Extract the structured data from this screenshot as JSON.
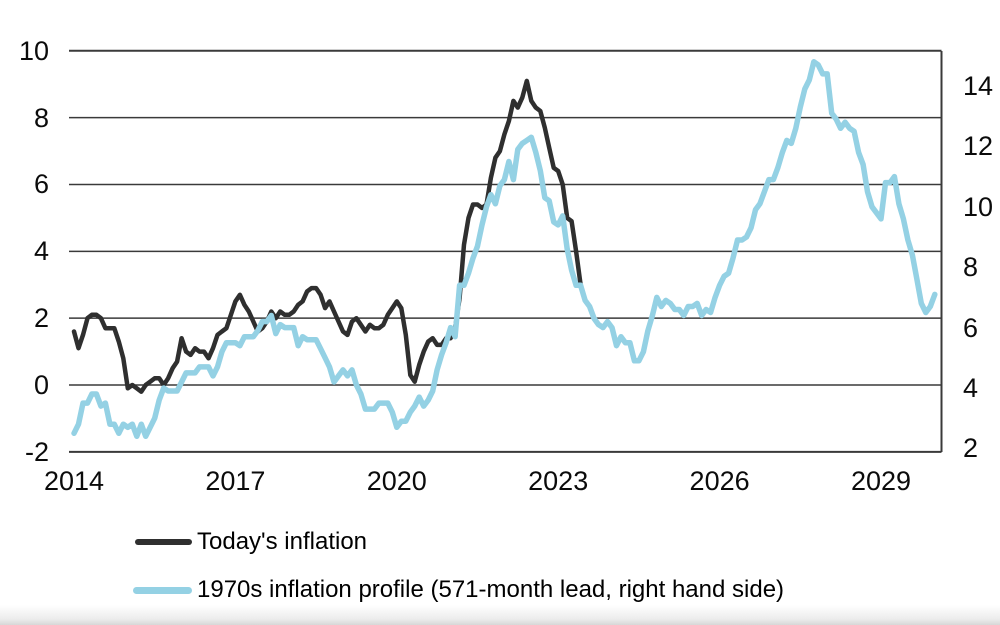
{
  "legend": {
    "items": [
      {
        "label": "Today's inflation",
        "color": "#2f2f2f"
      },
      {
        "label": "1970s inflation profile (571-month lead, right hand side)",
        "color": "#94d1e4"
      }
    ]
  },
  "chart_data": {
    "type": "line",
    "title": "",
    "x_axis": {
      "ticks": [
        "2014",
        "2017",
        "2020",
        "2023",
        "2026",
        "2029"
      ],
      "tick_years": [
        2014,
        2017,
        2020,
        2023,
        2026,
        2029
      ]
    },
    "left_axis": {
      "ticks": [
        "10",
        "8",
        "6",
        "4",
        "2",
        "0",
        "-2"
      ],
      "values": [
        10,
        8,
        6,
        4,
        2,
        0,
        -2
      ],
      "ylim": [
        -2,
        10
      ]
    },
    "right_axis": {
      "ticks": [
        "14",
        "12",
        "10",
        "8",
        "6",
        "4",
        "2"
      ],
      "values": [
        14,
        12,
        10,
        8,
        6,
        4,
        2
      ],
      "ylim": [
        2,
        14
      ],
      "note": "right axis labels are offset from the left-axis gridlines"
    },
    "gridlines": true,
    "legend_position": "bottom-left",
    "series": [
      {
        "name": "Today's inflation",
        "axis": "left",
        "color": "#2f2f2f",
        "stroke_width": 4.5,
        "frequency": "monthly",
        "start_on_axis": "2014-01",
        "end_on_axis": "2023-06",
        "values": [
          1.6,
          1.1,
          1.5,
          2.0,
          2.1,
          2.1,
          2.0,
          1.7,
          1.7,
          1.7,
          1.3,
          0.8,
          -0.1,
          0.0,
          -0.1,
          -0.2,
          0.0,
          0.1,
          0.2,
          0.2,
          0.0,
          0.2,
          0.5,
          0.7,
          1.4,
          1.0,
          0.9,
          1.1,
          1.0,
          1.0,
          0.8,
          1.1,
          1.5,
          1.6,
          1.7,
          2.1,
          2.5,
          2.7,
          2.4,
          2.2,
          1.9,
          1.6,
          1.7,
          1.9,
          2.2,
          2.0,
          2.2,
          2.1,
          2.1,
          2.2,
          2.4,
          2.5,
          2.8,
          2.9,
          2.9,
          2.7,
          2.3,
          2.5,
          2.2,
          1.9,
          1.6,
          1.5,
          1.9,
          2.0,
          1.8,
          1.6,
          1.8,
          1.7,
          1.7,
          1.8,
          2.1,
          2.3,
          2.5,
          2.3,
          1.5,
          0.3,
          0.1,
          0.6,
          1.0,
          1.3,
          1.4,
          1.2,
          1.2,
          1.4,
          1.4,
          1.7,
          2.6,
          4.2,
          5.0,
          5.4,
          5.4,
          5.3,
          5.4,
          6.2,
          6.8,
          7.0,
          7.5,
          7.9,
          8.5,
          8.3,
          8.6,
          9.1,
          8.5,
          8.3,
          8.2,
          7.7,
          7.1,
          6.5,
          6.4,
          6.0,
          5.0,
          4.9,
          4.0,
          3.0
        ]
      },
      {
        "name": "1970s inflation profile (571-month lead, right hand side)",
        "axis": "right",
        "color": "#94d1e4",
        "stroke_width": 5.5,
        "frequency": "monthly",
        "lead_months": 571,
        "start_on_axis": "2014-01",
        "end_on_axis": "2030-01",
        "values": [
          2.5,
          2.8,
          3.5,
          3.5,
          3.8,
          3.8,
          3.4,
          3.5,
          2.8,
          2.8,
          2.5,
          2.8,
          2.7,
          2.8,
          2.4,
          2.8,
          2.4,
          2.7,
          3.0,
          3.6,
          4.0,
          3.9,
          3.9,
          3.9,
          4.2,
          4.5,
          4.5,
          4.5,
          4.7,
          4.7,
          4.7,
          4.4,
          4.7,
          5.2,
          5.5,
          5.5,
          5.5,
          5.4,
          5.7,
          5.7,
          5.7,
          5.9,
          6.2,
          6.2,
          6.4,
          5.8,
          6.1,
          6.0,
          6.0,
          6.0,
          5.4,
          5.7,
          5.6,
          5.6,
          5.6,
          5.3,
          5.0,
          4.7,
          4.2,
          4.4,
          4.6,
          4.4,
          4.6,
          4.1,
          3.8,
          3.3,
          3.3,
          3.3,
          3.5,
          3.5,
          3.5,
          3.2,
          2.7,
          2.9,
          2.9,
          3.2,
          3.4,
          3.7,
          3.4,
          3.6,
          3.9,
          4.6,
          5.1,
          5.5,
          6.0,
          5.7,
          7.4,
          7.4,
          7.8,
          8.3,
          8.7,
          9.4,
          10.0,
          10.4,
          10.1,
          10.7,
          10.9,
          11.5,
          10.9,
          11.9,
          12.1,
          12.2,
          12.3,
          11.8,
          11.2,
          10.3,
          10.2,
          9.5,
          9.4,
          9.7,
          8.6,
          7.9,
          7.4,
          7.4,
          6.9,
          6.7,
          6.3,
          6.1,
          6.0,
          6.2,
          6.0,
          5.4,
          5.7,
          5.5,
          5.5,
          4.9,
          4.9,
          5.2,
          5.9,
          6.4,
          7.0,
          6.7,
          6.9,
          6.8,
          6.6,
          6.6,
          6.4,
          6.7,
          6.7,
          6.8,
          6.4,
          6.6,
          6.5,
          7.0,
          7.4,
          7.7,
          7.8,
          8.3,
          8.9,
          8.9,
          9.0,
          9.3,
          9.9,
          10.1,
          10.5,
          10.9,
          10.9,
          11.3,
          11.8,
          12.2,
          12.1,
          12.6,
          13.3,
          13.9,
          14.2,
          14.8,
          14.7,
          14.4,
          14.4,
          13.1,
          12.9,
          12.6,
          12.8,
          12.6,
          12.5,
          11.8,
          11.4,
          10.5,
          10.0,
          9.8,
          9.6,
          10.8,
          10.8,
          11.0,
          10.1,
          9.6,
          8.9,
          8.4,
          7.6,
          6.8,
          6.5,
          6.7,
          7.1
        ]
      }
    ]
  }
}
